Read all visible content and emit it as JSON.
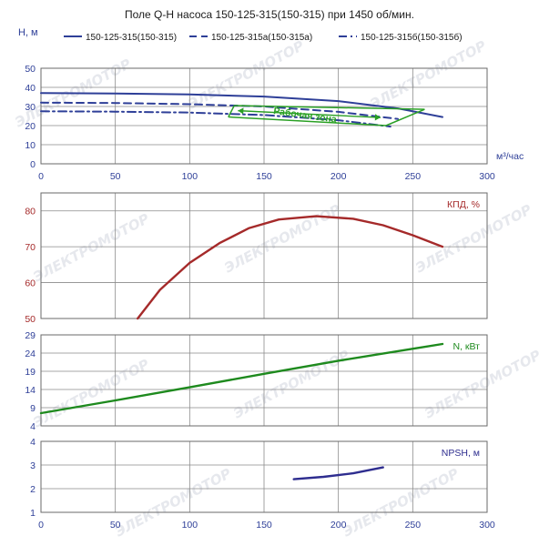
{
  "chart_data": {
    "title": "Поле Q-H насоса 150-125-315(150-315) при 1450 об/мин.",
    "watermark": "ЭЛЕКТРОМОТОР",
    "x": {
      "label": "м³/час",
      "range": [
        0,
        300
      ],
      "ticks": [
        0,
        50,
        100,
        150,
        200,
        250,
        300
      ]
    },
    "panels": [
      {
        "id": "qh",
        "type": "line",
        "ylabel": "Н, м",
        "ylim": [
          0,
          50
        ],
        "yticks": [
          0,
          10,
          20,
          30,
          40,
          50
        ],
        "legend_position": "top",
        "series": [
          {
            "name": "150-125-315(150-315)",
            "color": "#2e3f98",
            "dash": "solid",
            "points": [
              [
                0,
                37
              ],
              [
                50,
                36.8
              ],
              [
                100,
                36.3
              ],
              [
                150,
                35.2
              ],
              [
                200,
                32.8
              ],
              [
                240,
                29
              ],
              [
                270,
                24.5
              ]
            ]
          },
          {
            "name": "150-125-315а(150-315а)",
            "color": "#2e3f98",
            "dash": "dash",
            "points": [
              [
                0,
                32
              ],
              [
                50,
                31.8
              ],
              [
                100,
                31.2
              ],
              [
                150,
                30
              ],
              [
                200,
                27.2
              ],
              [
                240,
                23.5
              ]
            ]
          },
          {
            "name": "150-125-315б(150-315б)",
            "color": "#2e3f98",
            "dash": "dashdot",
            "points": [
              [
                0,
                27.5
              ],
              [
                50,
                27.3
              ],
              [
                100,
                26.8
              ],
              [
                150,
                25.5
              ],
              [
                200,
                22.8
              ],
              [
                235,
                19.5
              ]
            ]
          }
        ],
        "work_zone": {
          "label": "Рабочая зона",
          "color": "#2aa024",
          "left": [
            [
              130,
              30.5
            ],
            [
              126,
              24.5
            ]
          ],
          "right": [
            [
              258,
              28.5
            ],
            [
              232,
              20
            ]
          ],
          "top": [
            [
              130,
              30.5
            ],
            [
              258,
              28.5
            ]
          ],
          "bottom": [
            [
              126,
              24.5
            ],
            [
              232,
              20
            ]
          ]
        }
      },
      {
        "id": "eff",
        "type": "line",
        "label": "КПД, %",
        "ylim": [
          50,
          85
        ],
        "yticks": [
          50,
          60,
          70,
          80
        ],
        "color": "#a52a2a",
        "series": [
          {
            "name": "КПД, %",
            "points": [
              [
                65,
                50
              ],
              [
                80,
                58
              ],
              [
                100,
                65.5
              ],
              [
                120,
                71
              ],
              [
                140,
                75.2
              ],
              [
                160,
                77.6
              ],
              [
                185,
                78.5
              ],
              [
                210,
                77.8
              ],
              [
                230,
                76
              ],
              [
                250,
                73.2
              ],
              [
                270,
                70
              ]
            ]
          }
        ]
      },
      {
        "id": "power",
        "type": "line",
        "label": "N, кВт",
        "ylim": [
          4,
          29
        ],
        "yticks": [
          4,
          9,
          14,
          19,
          24,
          29
        ],
        "color": "#1e8a1e",
        "series": [
          {
            "name": "N, кВт",
            "points": [
              [
                0,
                7.5
              ],
              [
                50,
                11
              ],
              [
                100,
                14.6
              ],
              [
                150,
                18.3
              ],
              [
                200,
                21.9
              ],
              [
                270,
                26.5
              ]
            ]
          }
        ]
      },
      {
        "id": "npsh",
        "type": "line",
        "label": "NPSH, м",
        "ylim": [
          1,
          4
        ],
        "yticks": [
          1,
          2,
          3,
          4
        ],
        "color": "#2e2d8f",
        "series": [
          {
            "name": "NPSH, м",
            "points": [
              [
                170,
                2.4
              ],
              [
                190,
                2.5
              ],
              [
                210,
                2.65
              ],
              [
                230,
                2.9
              ]
            ]
          }
        ]
      }
    ]
  }
}
